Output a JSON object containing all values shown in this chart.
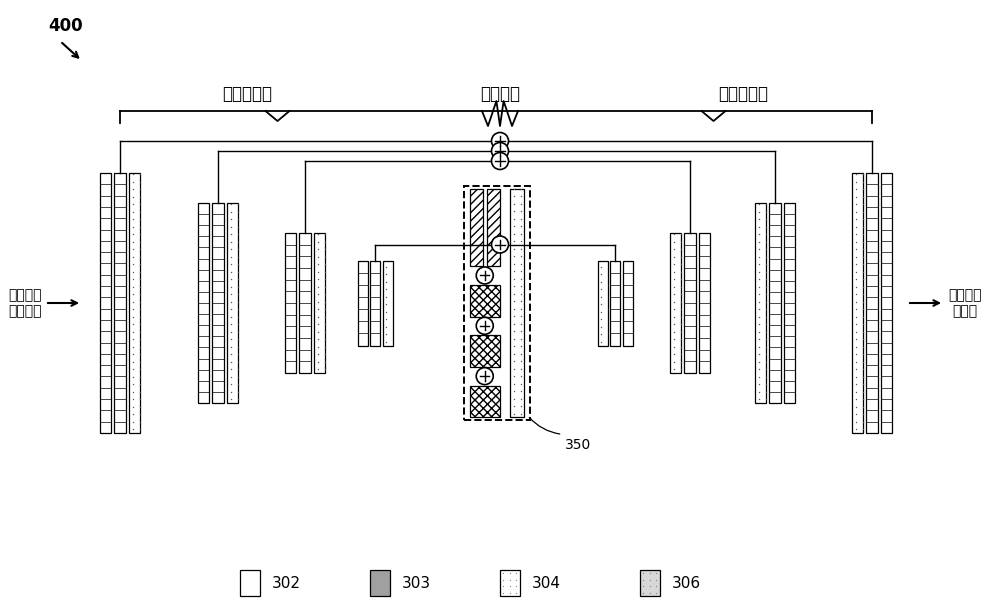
{
  "title": "400",
  "label_input": "低亮度的\n数字图像",
  "label_output": "得出的数\n字图像",
  "label_downsample": "下采样阶段",
  "label_bottleneck": "瓶颈结构",
  "label_upsample": "上采样阶段",
  "label_350": "350",
  "legend_items": [
    "302",
    "303",
    "304",
    "306"
  ],
  "bg_color": "#ffffff",
  "line_color": "#000000",
  "font_name": "SimHei"
}
